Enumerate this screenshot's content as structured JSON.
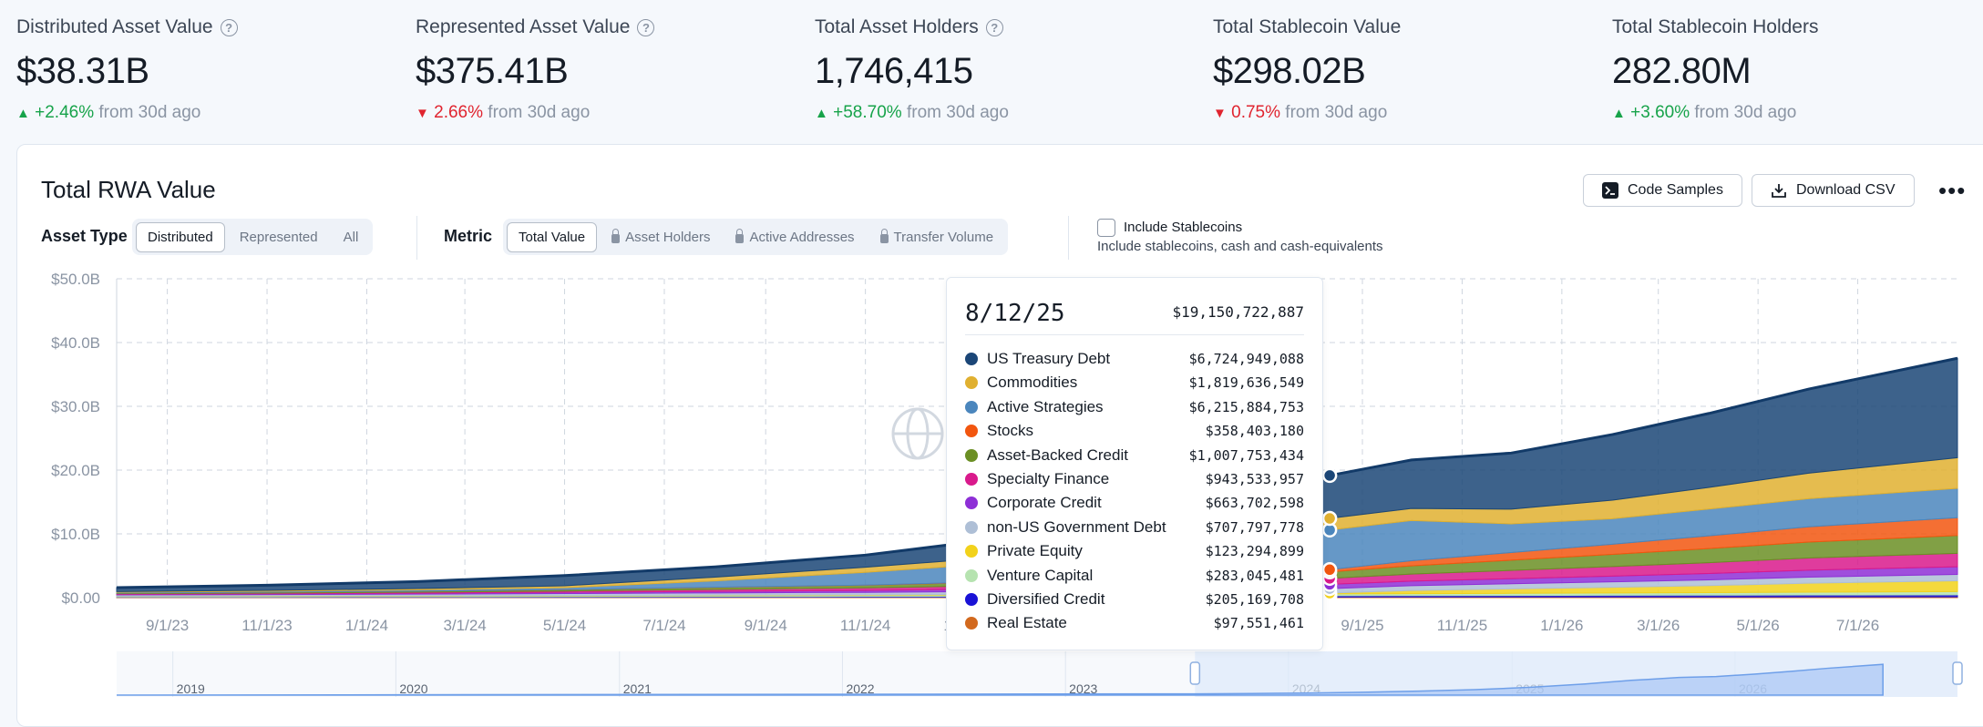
{
  "stats": [
    {
      "label": "Distributed Asset Value",
      "help": true,
      "value": "$38.31B",
      "direction": "up",
      "change": "+2.46%",
      "suffix": "from 30d ago"
    },
    {
      "label": "Represented Asset Value",
      "help": true,
      "value": "$375.41B",
      "direction": "down",
      "change": "2.66%",
      "suffix": "from 30d ago"
    },
    {
      "label": "Total Asset Holders",
      "help": true,
      "value": "1,746,415",
      "direction": "up",
      "change": "+58.70%",
      "suffix": "from 30d ago"
    },
    {
      "label": "Total Stablecoin Value",
      "help": false,
      "value": "$298.02B",
      "direction": "down",
      "change": "0.75%",
      "suffix": "from 30d ago"
    },
    {
      "label": "Total Stablecoin Holders",
      "help": false,
      "value": "282.80M",
      "direction": "up",
      "change": "+3.60%",
      "suffix": "from 30d ago"
    }
  ],
  "card": {
    "title": "Total RWA Value",
    "code_samples_label": "Code Samples",
    "download_csv_label": "Download CSV",
    "more_label": "•••"
  },
  "filters": {
    "asset_type_label": "Asset Type",
    "asset_types": [
      {
        "label": "Distributed",
        "active": true
      },
      {
        "label": "Represented",
        "active": false
      },
      {
        "label": "All",
        "active": false
      }
    ],
    "metric_label": "Metric",
    "metrics": [
      {
        "label": "Total Value",
        "active": true,
        "locked": false
      },
      {
        "label": "Asset Holders",
        "active": false,
        "locked": true
      },
      {
        "label": "Active Addresses",
        "active": false,
        "locked": true
      },
      {
        "label": "Transfer Volume",
        "active": false,
        "locked": true
      }
    ],
    "stablecoin_label": "Include Stablecoins",
    "stablecoin_sub": "Include stablecoins, cash and cash-equivalents",
    "stablecoin_checked": false
  },
  "chart_data": {
    "type": "area",
    "stacked": true,
    "y_ticks": [
      "$50.0B",
      "$40.0B",
      "$30.0B",
      "$20.0B",
      "$10.0B",
      "$0.00"
    ],
    "ylim": [
      0,
      50
    ],
    "y_unit": "billions USD",
    "x_ticks": [
      "9/1/23",
      "11/1/23",
      "1/1/24",
      "3/1/24",
      "5/1/24",
      "7/1/24",
      "9/1/24",
      "11/1/24",
      "1/1/25",
      "3/1/25",
      "5/1/25",
      "7/1/25",
      "9/1/25",
      "11/1/25",
      "1/1/26",
      "3/1/26",
      "5/1/26",
      "7/1/26"
    ],
    "x_range": [
      "2023-08-01",
      "2026-08-31"
    ],
    "grid": true,
    "navigator_labels": [
      "2019",
      "2020",
      "2021",
      "2022",
      "2023",
      "2024",
      "2025",
      "2026"
    ],
    "hover_date": "2025-08-12",
    "x": [
      "2023-08-01",
      "2023-11-01",
      "2024-02-01",
      "2024-05-01",
      "2024-08-01",
      "2024-11-01",
      "2025-02-01",
      "2025-05-01",
      "2025-07-15",
      "2025-08-12",
      "2025-10-01",
      "2025-12-01",
      "2026-02-01",
      "2026-04-01",
      "2026-06-01",
      "2026-08-31"
    ],
    "series": [
      {
        "name": "Real Estate",
        "color": "#d2691e",
        "values": [
          0.05,
          0.05,
          0.06,
          0.06,
          0.07,
          0.07,
          0.08,
          0.08,
          0.09,
          0.098,
          0.1,
          0.1,
          0.11,
          0.11,
          0.12,
          0.12
        ]
      },
      {
        "name": "Diversified Credit",
        "color": "#1a12d6",
        "values": [
          0.05,
          0.06,
          0.07,
          0.08,
          0.09,
          0.1,
          0.12,
          0.15,
          0.19,
          0.205,
          0.22,
          0.24,
          0.26,
          0.28,
          0.3,
          0.32
        ]
      },
      {
        "name": "Venture Capital",
        "color": "#b6e3b0",
        "values": [
          0.1,
          0.11,
          0.12,
          0.14,
          0.16,
          0.18,
          0.21,
          0.24,
          0.27,
          0.283,
          0.3,
          0.33,
          0.36,
          0.4,
          0.44,
          0.5
        ]
      },
      {
        "name": "Private Equity",
        "color": "#f2d21b",
        "values": [
          0.03,
          0.04,
          0.05,
          0.06,
          0.07,
          0.08,
          0.09,
          0.1,
          0.12,
          0.123,
          0.5,
          0.7,
          0.9,
          1.1,
          1.4,
          1.7
        ]
      },
      {
        "name": "non-US Government Debt",
        "color": "#aebfd6",
        "values": [
          0.2,
          0.22,
          0.25,
          0.3,
          0.35,
          0.4,
          0.5,
          0.6,
          0.68,
          0.708,
          0.75,
          0.8,
          0.85,
          0.9,
          0.95,
          1.0
        ]
      },
      {
        "name": "Corporate Credit",
        "color": "#8e2fd6",
        "values": [
          0.1,
          0.12,
          0.15,
          0.2,
          0.25,
          0.3,
          0.4,
          0.5,
          0.62,
          0.664,
          0.72,
          0.8,
          0.9,
          1.0,
          1.1,
          1.2
        ]
      },
      {
        "name": "Specialty Finance",
        "color": "#d91a8c",
        "values": [
          0.1,
          0.12,
          0.15,
          0.2,
          0.3,
          0.4,
          0.55,
          0.7,
          0.88,
          0.944,
          1.1,
          1.3,
          1.5,
          1.7,
          1.9,
          2.1
        ]
      },
      {
        "name": "Asset-Backed Credit",
        "color": "#6b8f24",
        "values": [
          0.1,
          0.12,
          0.15,
          0.2,
          0.3,
          0.4,
          0.55,
          0.75,
          0.95,
          1.008,
          1.3,
          1.6,
          1.9,
          2.2,
          2.5,
          2.8
        ]
      },
      {
        "name": "Stocks",
        "color": "#f2560f",
        "values": [
          0.01,
          0.01,
          0.02,
          0.02,
          0.03,
          0.04,
          0.06,
          0.1,
          0.3,
          0.358,
          0.8,
          1.2,
          1.6,
          2.0,
          2.4,
          2.8
        ]
      },
      {
        "name": "Active Strategies",
        "color": "#4b86bd",
        "values": [
          0.1,
          0.15,
          0.2,
          0.3,
          1.0,
          2.0,
          3.0,
          4.5,
          5.9,
          6.216,
          6.3,
          4.5,
          4.0,
          4.2,
          4.4,
          4.6
        ]
      },
      {
        "name": "Commodities",
        "color": "#e0b030",
        "values": [
          0.1,
          0.15,
          0.2,
          0.3,
          0.6,
          0.8,
          1.0,
          1.4,
          1.7,
          1.82,
          1.9,
          2.3,
          2.9,
          3.4,
          4.0,
          4.8
        ]
      },
      {
        "name": "US Treasury Debt",
        "color": "#1b4677",
        "values": [
          0.63,
          0.8,
          1.1,
          1.6,
          1.6,
          1.9,
          3.0,
          4.5,
          6.3,
          6.725,
          7.6,
          8.8,
          10.3,
          11.6,
          13.2,
          15.6
        ]
      }
    ],
    "tooltip": {
      "date": "8/12/25",
      "total": "$19,150,722,887",
      "rows": [
        {
          "name": "US Treasury Debt",
          "color": "#1b4677",
          "value": "$6,724,949,088"
        },
        {
          "name": "Commodities",
          "color": "#e0b030",
          "value": "$1,819,636,549"
        },
        {
          "name": "Active Strategies",
          "color": "#4b86bd",
          "value": "$6,215,884,753"
        },
        {
          "name": "Stocks",
          "color": "#f2560f",
          "value": "$358,403,180"
        },
        {
          "name": "Asset-Backed Credit",
          "color": "#6b8f24",
          "value": "$1,007,753,434"
        },
        {
          "name": "Specialty Finance",
          "color": "#d91a8c",
          "value": "$943,533,957"
        },
        {
          "name": "Corporate Credit",
          "color": "#8e2fd6",
          "value": "$663,702,598"
        },
        {
          "name": "non-US Government Debt",
          "color": "#aebfd6",
          "value": "$707,797,778"
        },
        {
          "name": "Private Equity",
          "color": "#f2d21b",
          "value": "$123,294,899"
        },
        {
          "name": "Venture Capital",
          "color": "#b6e3b0",
          "value": "$283,045,481"
        },
        {
          "name": "Diversified Credit",
          "color": "#1a12d6",
          "value": "$205,169,708"
        },
        {
          "name": "Real Estate",
          "color": "#d2691e",
          "value": "$97,551,461"
        }
      ]
    }
  }
}
